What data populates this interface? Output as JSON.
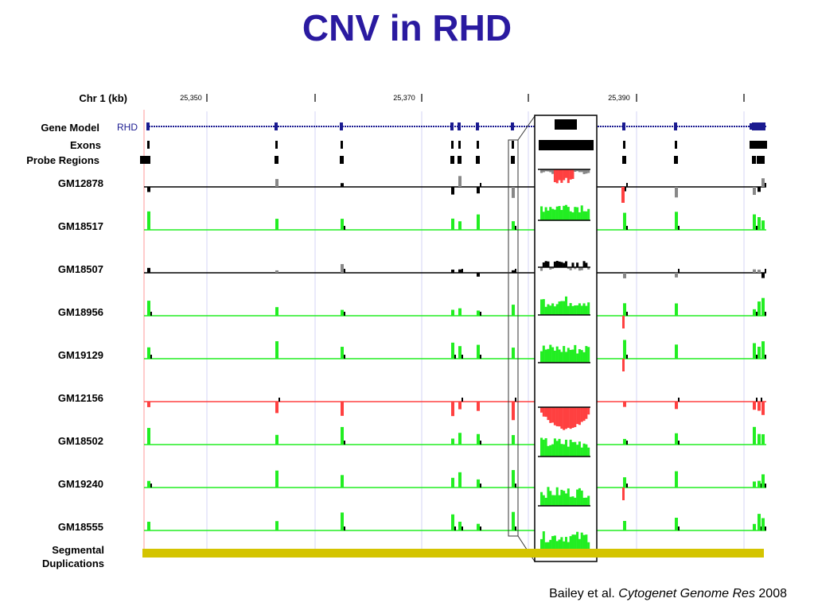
{
  "title": "CNV in RHD",
  "axis": {
    "label": "Chr 1 (kb)",
    "ticks": [
      "25,350",
      "25,370",
      "25,390"
    ]
  },
  "tracks": {
    "gene_model": "Gene Model",
    "gene_name": "RHD",
    "exons": "Exons",
    "probe_regions": "Probe Regions",
    "segdup_line1": "Segmental",
    "segdup_line2": "Duplications"
  },
  "samples": [
    {
      "name": "GM12878",
      "state": "loss-partial"
    },
    {
      "name": "GM18517",
      "state": "gain"
    },
    {
      "name": "GM18507",
      "state": "normal"
    },
    {
      "name": "GM18956",
      "state": "gain"
    },
    {
      "name": "GM19129",
      "state": "gain"
    },
    {
      "name": "GM12156",
      "state": "loss"
    },
    {
      "name": "GM18502",
      "state": "gain"
    },
    {
      "name": "GM19240",
      "state": "gain"
    },
    {
      "name": "GM18555",
      "state": "gain"
    }
  ],
  "colors": {
    "gain": "#22ee22",
    "loss": "#ff4040",
    "normal": "#000000",
    "gene": "#1a1a90",
    "segdup": "#d4c400",
    "title": "#2a1aa0"
  },
  "citation": {
    "authors": "Bailey et al.",
    "journal": "Cytogenet Genome Res",
    "year": "2008"
  }
}
